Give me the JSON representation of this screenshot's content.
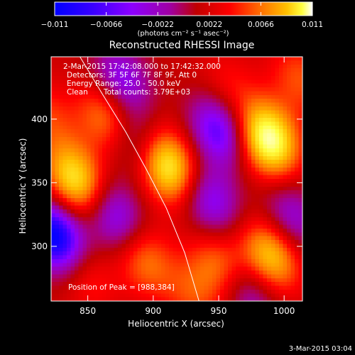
{
  "chart_data": {
    "type": "heatmap",
    "title": "Reconstructed RHESSI Image",
    "xlabel": "Heliocentric X (arcsec)",
    "ylabel": "Heliocentric Y (arcsec)",
    "xlim": [
      822,
      1014
    ],
    "ylim": [
      257,
      449
    ],
    "x_ticks": [
      850,
      900,
      950,
      1000
    ],
    "y_ticks": [
      300,
      350,
      400
    ],
    "colorbar": {
      "label": "(photons cm⁻² s⁻¹ asec⁻²)",
      "range": [
        -0.011,
        0.011
      ],
      "ticks": [
        "−0.011",
        "−0.0066",
        "−0.0022",
        "0.0022",
        "0.0066",
        "0.011"
      ],
      "tick_values": [
        -0.011,
        -0.0066,
        -0.0022,
        0.0022,
        0.0066,
        0.011
      ],
      "colormap": [
        "#0000ff",
        "#3a00ff",
        "#8c00ff",
        "#a000a0",
        "#c00000",
        "#ff0000",
        "#ff7000",
        "#ffc000",
        "#ffff40",
        "#ffffff"
      ]
    },
    "annotations": [
      "2-Mar-2015 17:42:08.000 to 17:42:32.000",
      "Detectors: 3F 5F 6F 7F 8F 9F, Att 0",
      "Energy Range: 25.0 - 50.0 keV",
      "Clean",
      "Total counts: 3.79E+03",
      "Position of Peak = [988,384]"
    ],
    "sources": [
      {
        "x": 988,
        "y": 384,
        "value": 0.011
      },
      {
        "x": 911,
        "y": 363,
        "value": 0.0095
      },
      {
        "x": 840,
        "y": 352,
        "value": 0.0085
      },
      {
        "x": 866,
        "y": 402,
        "value": 0.0062
      },
      {
        "x": 990,
        "y": 293,
        "value": 0.0078
      },
      {
        "x": 950,
        "y": 286,
        "value": 0.0045
      },
      {
        "x": 893,
        "y": 290,
        "value": 0.0048
      },
      {
        "x": 958,
        "y": 423,
        "value": 0.0026
      },
      {
        "x": 1012,
        "y": 432,
        "value": 0.0036
      },
      {
        "x": 820,
        "y": 400,
        "value": 0.003
      },
      {
        "x": 850,
        "y": 274,
        "value": 0.0026
      },
      {
        "x": 930,
        "y": 262,
        "value": 0.0032
      },
      {
        "x": 872,
        "y": 322,
        "value": -0.0058
      },
      {
        "x": 825,
        "y": 308,
        "value": -0.0105
      },
      {
        "x": 950,
        "y": 392,
        "value": -0.0072
      },
      {
        "x": 944,
        "y": 335,
        "value": -0.0056
      },
      {
        "x": 1005,
        "y": 322,
        "value": -0.0048
      },
      {
        "x": 885,
        "y": 384,
        "value": -0.0045
      },
      {
        "x": 875,
        "y": 430,
        "value": -0.0058
      },
      {
        "x": 974,
        "y": 262,
        "value": -0.0042
      }
    ],
    "background_level": -0.0008,
    "limb_curve": [
      {
        "x": 844,
        "y": 449
      },
      {
        "x": 861,
        "y": 420
      },
      {
        "x": 879,
        "y": 390
      },
      {
        "x": 895,
        "y": 360
      },
      {
        "x": 910,
        "y": 330
      },
      {
        "x": 924,
        "y": 295
      },
      {
        "x": 935,
        "y": 257
      }
    ],
    "peak": {
      "x": 988,
      "y": 384
    }
  },
  "footer_date": "3-Mar-2015 03:04"
}
